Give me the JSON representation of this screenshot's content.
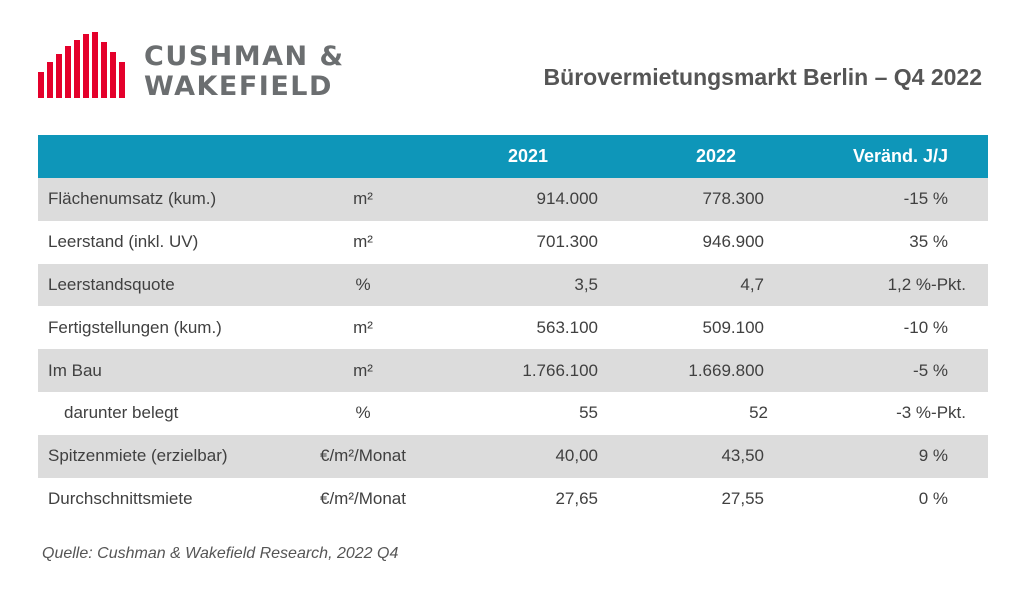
{
  "logo": {
    "line1": "CUSHMAN &",
    "line2": "WAKEFIELD",
    "mark_color": "#e4002b",
    "text_color": "#6b6e70"
  },
  "title": "Bürovermietungsmarkt Berlin – Q4 2022",
  "table": {
    "header_color": "#0e96b9",
    "headers": [
      "",
      "",
      "2021",
      "2022",
      "Veränd. J/J"
    ],
    "rows": [
      {
        "label": "Flächenumsatz (kum.)",
        "unit": "m²",
        "y2021": "914.000",
        "y2022": "778.300",
        "change": "-15 %"
      },
      {
        "label": "Leerstand (inkl. UV)",
        "unit": "m²",
        "y2021": "701.300",
        "y2022": "946.900",
        "change": "35 %"
      },
      {
        "label": "Leerstandsquote",
        "unit": "%",
        "y2021": "3,5",
        "y2022": "4,7",
        "change": "1,2 %-Pkt."
      },
      {
        "label": "Fertigstellungen (kum.)",
        "unit": "m²",
        "y2021": "563.100",
        "y2022": "509.100",
        "change": "-10 %"
      },
      {
        "label": "Im Bau",
        "unit": "m²",
        "y2021": "1.766.100",
        "y2022": "1.669.800",
        "change": "-5 %"
      },
      {
        "label": "darunter belegt",
        "unit": "%",
        "y2021": "55",
        "y2022": "52",
        "change": "-3 %-Pkt."
      },
      {
        "label": "Spitzenmiete (erzielbar)",
        "unit": "€/m²/Monat",
        "y2021": "40,00",
        "y2022": "43,50",
        "change": "9 %"
      },
      {
        "label": "Durchschnittsmiete",
        "unit": "€/m²/Monat",
        "y2021": "27,65",
        "y2022": "27,55",
        "change": "0 %"
      }
    ]
  },
  "source": "Quelle: Cushman & Wakefield Research, 2022 Q4"
}
